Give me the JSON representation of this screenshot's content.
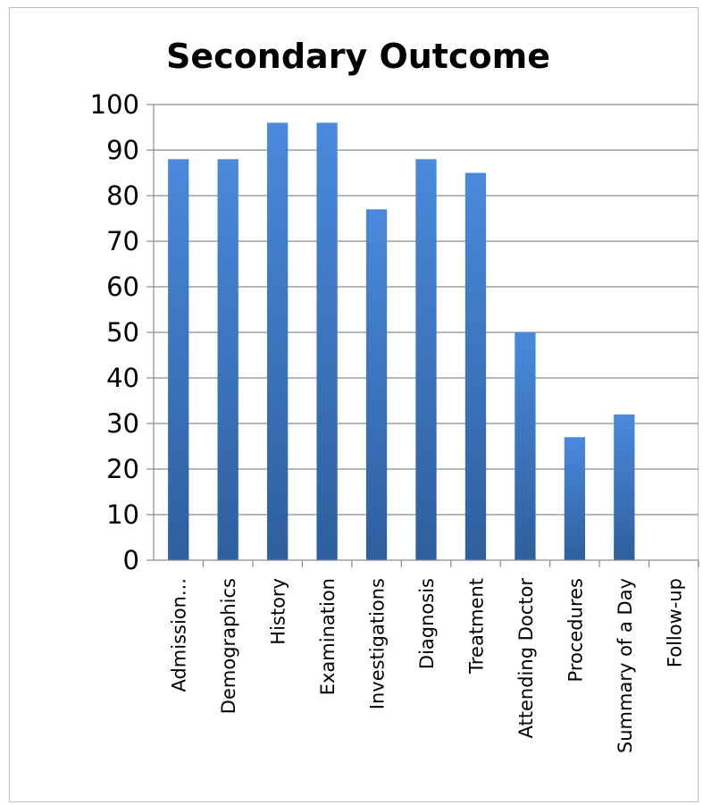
{
  "chart_data": {
    "type": "bar",
    "title": "Secondary Outcome",
    "xlabel": "",
    "ylabel": "",
    "ylim": [
      0,
      100
    ],
    "yticks": [
      0,
      10,
      20,
      30,
      40,
      50,
      60,
      70,
      80,
      90,
      100
    ],
    "grid": true,
    "legend": "none",
    "bar_color": "#3f7ecf",
    "categories": [
      "Admission...",
      "Demographics",
      "History",
      "Examination",
      "Investigations",
      "Diagnosis",
      "Treatment",
      "Attending Doctor",
      "Procedures",
      "Summary of a Day",
      "Follow-up"
    ],
    "values": [
      88,
      88,
      96,
      96,
      77,
      88,
      85,
      50,
      27,
      32,
      0
    ]
  }
}
